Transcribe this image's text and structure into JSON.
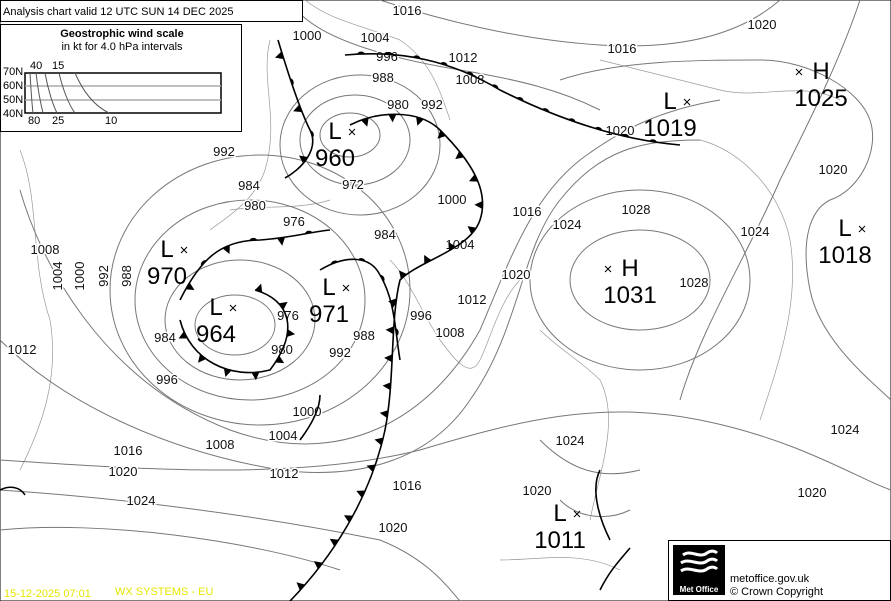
{
  "header": {
    "title": "Analysis chart valid 12 UTC SUN 14  DEC 2025"
  },
  "wind_scale": {
    "title": "Geostrophic wind scale",
    "subtitle": "in kt for 4.0 hPa intervals",
    "latitudes": [
      "70N",
      "60N",
      "50N",
      "40N"
    ],
    "top_labels": [
      "40",
      "15"
    ],
    "bottom_labels": [
      "80",
      "25",
      "10"
    ]
  },
  "pressure_centres": [
    {
      "type": "L",
      "value": "960"
    },
    {
      "type": "L",
      "value": "1019"
    },
    {
      "type": "H",
      "value": "1025"
    },
    {
      "type": "L",
      "value": "1018"
    },
    {
      "type": "H",
      "value": "1031"
    },
    {
      "type": "L",
      "value": "970"
    },
    {
      "type": "L",
      "value": "964"
    },
    {
      "type": "L",
      "value": "971"
    },
    {
      "type": "L",
      "value": "1011"
    }
  ],
  "isobar_labels": [
    "1016",
    "1004",
    "1000",
    "996",
    "1012",
    "1008",
    "988",
    "980",
    "992",
    "1016",
    "1020",
    "1020",
    "992",
    "984",
    "972",
    "980",
    "976",
    "1000",
    "984",
    "1004",
    "1016",
    "1024",
    "1028",
    "1024",
    "1020",
    "1008",
    "1004",
    "1000",
    "992",
    "988",
    "1020",
    "1012",
    "1028",
    "996",
    "1008",
    "976",
    "988",
    "984",
    "980",
    "992",
    "996",
    "1012",
    "1000",
    "1004",
    "1008",
    "1016",
    "1020",
    "1012",
    "1024",
    "1016",
    "1020",
    "1024",
    "1020",
    "1020",
    "1024"
  ],
  "fronts": [
    "occluded",
    "cold",
    "warm",
    "occluded",
    "cold",
    "warm"
  ],
  "footer": {
    "timestamp": "15-12-2025  07:01",
    "system": "WX SYSTEMS - EU",
    "logo_text": "Met Office",
    "website": "metoffice.gov.uk",
    "copyright": "© Crown Copyright"
  },
  "colors": {
    "footer_text": "#e6e600",
    "isobar": "#777777",
    "front": "#000000"
  }
}
